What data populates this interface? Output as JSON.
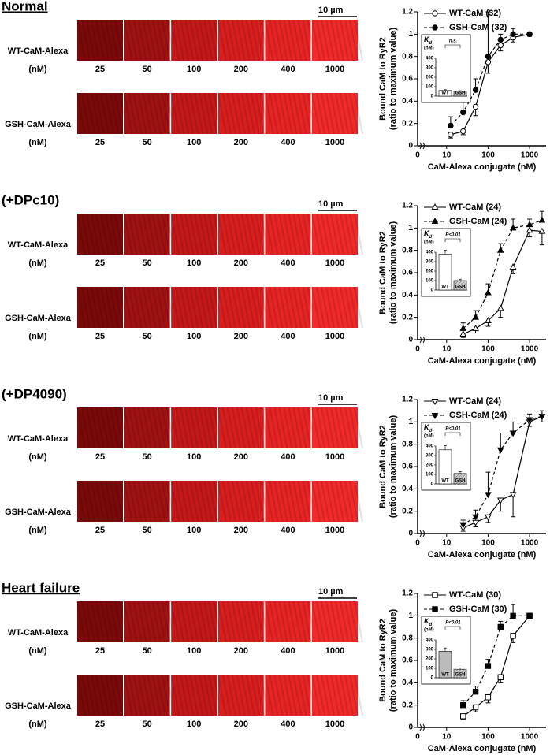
{
  "panels": [
    {
      "title": "Normal",
      "underline": true,
      "scale_bar": "10 µm",
      "rows": [
        {
          "label": "WT-CaM-Alexa",
          "unit": "(nM)"
        },
        {
          "label": "GSH-CaM-Alexa",
          "unit": "(nM)"
        }
      ]
    },
    {
      "title": "(+DPc10)",
      "underline": false,
      "scale_bar": "10 µm",
      "rows": [
        {
          "label": "WT-CaM-Alexa",
          "unit": "(nM)"
        },
        {
          "label": "GSH-CaM-Alexa",
          "unit": "(nM)"
        }
      ]
    },
    {
      "title": "(+DP4090)",
      "underline": false,
      "scale_bar": "10 µm",
      "rows": [
        {
          "label": "WT-CaM-Alexa",
          "unit": "(nM)"
        },
        {
          "label": "GSH-CaM-Alexa",
          "unit": "(nM)"
        }
      ]
    },
    {
      "title": "Heart failure",
      "underline": true,
      "scale_bar": "10 µm",
      "rows": [
        {
          "label": "WT-CaM-Alexa",
          "unit": "(nM)"
        },
        {
          "label": "GSH-CaM-Alexa",
          "unit": "(nM)"
        }
      ]
    }
  ],
  "concentrations": [
    25,
    50,
    100,
    200,
    400,
    1000
  ],
  "chart_data": [
    {
      "type": "line",
      "ylabel": [
        "Bound CaM to RyR2",
        "(ratio to maximum value)"
      ],
      "xlabel": "CaM-Alexa conjugate (nM)",
      "x_origin_label": "0",
      "xlog": true,
      "xlim": [
        2,
        2500
      ],
      "xticks": [
        10,
        100,
        1000
      ],
      "ylim": [
        0,
        1.2
      ],
      "yticks": [
        0,
        0.2,
        0.4,
        0.6,
        0.8,
        1,
        1.2
      ],
      "x": [
        12.5,
        25,
        50,
        100,
        200,
        400,
        1000
      ],
      "series": [
        {
          "name": "WT-CaM (32)",
          "color": "#000000",
          "marker": "circle",
          "filled": false,
          "dashed": false,
          "values": [
            0.1,
            0.13,
            0.35,
            0.75,
            0.9,
            0.97,
            1.0
          ],
          "errors": [
            0.03,
            0.03,
            0.08,
            0.1,
            0.05,
            0.04,
            0.02
          ]
        },
        {
          "name": "GSH-CaM (32)",
          "color": "#000000",
          "marker": "circle",
          "filled": true,
          "dashed": true,
          "values": [
            0.18,
            0.3,
            0.5,
            0.8,
            0.95,
            1.0,
            1.0
          ],
          "errors": [
            0.08,
            0.1,
            0.1,
            0.4,
            0.05,
            0.05,
            0.02
          ]
        }
      ],
      "inset": {
        "categories": [
          "WT",
          "GSH"
        ],
        "values": [
          60,
          50
        ],
        "errors": [
          8,
          8
        ],
        "colors": [
          "#ffffff",
          "#cccccc"
        ],
        "ylim": [
          0,
          400
        ],
        "yticks": [
          0,
          100,
          200,
          300,
          400
        ],
        "ylabel_symbol": "K",
        "ylabel_subscript": "d",
        "ylabel_unit": "(nM)",
        "annotation": "n.s."
      }
    },
    {
      "type": "line",
      "ylabel": [
        "Bound CaM to RyR2",
        "(ratio to maximum value)"
      ],
      "xlabel": "CaM-Alexa conjugate (nM)",
      "x_origin_label": "0",
      "xlog": true,
      "xlim": [
        2,
        2500
      ],
      "xticks": [
        10,
        100,
        1000
      ],
      "ylim": [
        0,
        1.2
      ],
      "yticks": [
        0,
        0.2,
        0.4,
        0.6,
        0.8,
        1,
        1.2
      ],
      "x": [
        25,
        50,
        100,
        200,
        400,
        1000,
        2000
      ],
      "series": [
        {
          "name": "WT-CaM (24)",
          "color": "#000000",
          "marker": "triangle-up",
          "filled": false,
          "dashed": false,
          "values": [
            0.05,
            0.1,
            0.17,
            0.28,
            0.65,
            0.98,
            0.97
          ],
          "errors": [
            0.03,
            0.04,
            0.05,
            0.08,
            0.06,
            0.06,
            0.12
          ]
        },
        {
          "name": "GSH-CaM (24)",
          "color": "#000000",
          "marker": "triangle-up",
          "filled": true,
          "dashed": true,
          "values": [
            0.1,
            0.2,
            0.42,
            0.8,
            1.0,
            1.03,
            1.07
          ],
          "errors": [
            0.05,
            0.06,
            0.08,
            0.06,
            0.08,
            0.05,
            0.08
          ]
        }
      ],
      "inset": {
        "categories": [
          "WT",
          "GSH"
        ],
        "values": [
          380,
          100
        ],
        "errors": [
          40,
          15
        ],
        "colors": [
          "#ffffff",
          "#cccccc"
        ],
        "ylim": [
          0,
          400
        ],
        "yticks": [
          0,
          100,
          200,
          300,
          400
        ],
        "ylabel_symbol": "K",
        "ylabel_subscript": "d",
        "ylabel_unit": "(nM)",
        "annotation": "P<0.01"
      }
    },
    {
      "type": "line",
      "ylabel": [
        "Bound CaM to RyR2",
        "(ratio to maximum value)"
      ],
      "xlabel": "CaM-Alexa conjugate (nM)",
      "x_origin_label": "0",
      "xlog": true,
      "xlim": [
        2,
        2500
      ],
      "xticks": [
        10,
        100,
        1000
      ],
      "ylim": [
        0,
        1.2
      ],
      "yticks": [
        0,
        0.2,
        0.4,
        0.6,
        0.8,
        1,
        1.2
      ],
      "x": [
        25,
        50,
        100,
        200,
        400,
        1000,
        2000
      ],
      "series": [
        {
          "name": "WT-CaM (24)",
          "color": "#000000",
          "marker": "triangle-down",
          "filled": false,
          "dashed": false,
          "values": [
            0.05,
            0.1,
            0.15,
            0.3,
            0.35,
            1.0,
            1.05
          ],
          "errors": [
            0.03,
            0.04,
            0.05,
            0.1,
            0.2,
            0.04,
            0.05
          ]
        },
        {
          "name": "GSH-CaM (24)",
          "color": "#000000",
          "marker": "triangle-down",
          "filled": true,
          "dashed": true,
          "values": [
            0.08,
            0.15,
            0.35,
            0.75,
            0.9,
            1.02,
            1.05
          ],
          "errors": [
            0.04,
            0.06,
            0.2,
            0.15,
            0.1,
            0.05,
            0.05
          ]
        }
      ],
      "inset": {
        "categories": [
          "WT",
          "GSH"
        ],
        "values": [
          360,
          110
        ],
        "errors": [
          45,
          20
        ],
        "colors": [
          "#ffffff",
          "#cccccc"
        ],
        "ylim": [
          0,
          400
        ],
        "yticks": [
          0,
          100,
          200,
          300,
          400
        ],
        "ylabel_symbol": "K",
        "ylabel_subscript": "d",
        "ylabel_unit": "(nM)",
        "annotation": "P<0.01"
      }
    },
    {
      "type": "line",
      "ylabel": [
        "Bound CaM to RyR2",
        "(ratio to maximum value)"
      ],
      "xlabel": "CaM-Alexa conjugate (nM)",
      "x_origin_label": "0",
      "xlog": true,
      "xlim": [
        2,
        2500
      ],
      "xticks": [
        10,
        100,
        1000
      ],
      "ylim": [
        0,
        1.2
      ],
      "yticks": [
        0,
        0.2,
        0.4,
        0.6,
        0.8,
        1,
        1.2
      ],
      "x": [
        25,
        50,
        100,
        200,
        400,
        1000
      ],
      "series": [
        {
          "name": "WT-CaM (30)",
          "color": "#000000",
          "marker": "square",
          "filled": false,
          "dashed": false,
          "values": [
            0.1,
            0.18,
            0.27,
            0.45,
            0.82,
            1.0
          ],
          "errors": [
            0.03,
            0.04,
            0.05,
            0.05,
            0.06,
            0.02
          ]
        },
        {
          "name": "GSH-CaM (30)",
          "color": "#000000",
          "marker": "square",
          "filled": true,
          "dashed": true,
          "values": [
            0.2,
            0.32,
            0.55,
            0.9,
            1.0,
            1.0
          ],
          "errors": [
            0.04,
            0.05,
            0.06,
            0.05,
            0.1,
            0.02
          ]
        }
      ],
      "inset": {
        "categories": [
          "WT",
          "GSH"
        ],
        "values": [
          280,
          90
        ],
        "errors": [
          35,
          15
        ],
        "colors": [
          "#bbbbbb",
          "#cccccc"
        ],
        "ylim": [
          0,
          400
        ],
        "yticks": [
          0,
          100,
          200,
          300,
          400
        ],
        "ylabel_symbol": "K",
        "ylabel_subscript": "d",
        "ylabel_unit": "(nM)",
        "annotation": "P<0.01"
      }
    }
  ]
}
